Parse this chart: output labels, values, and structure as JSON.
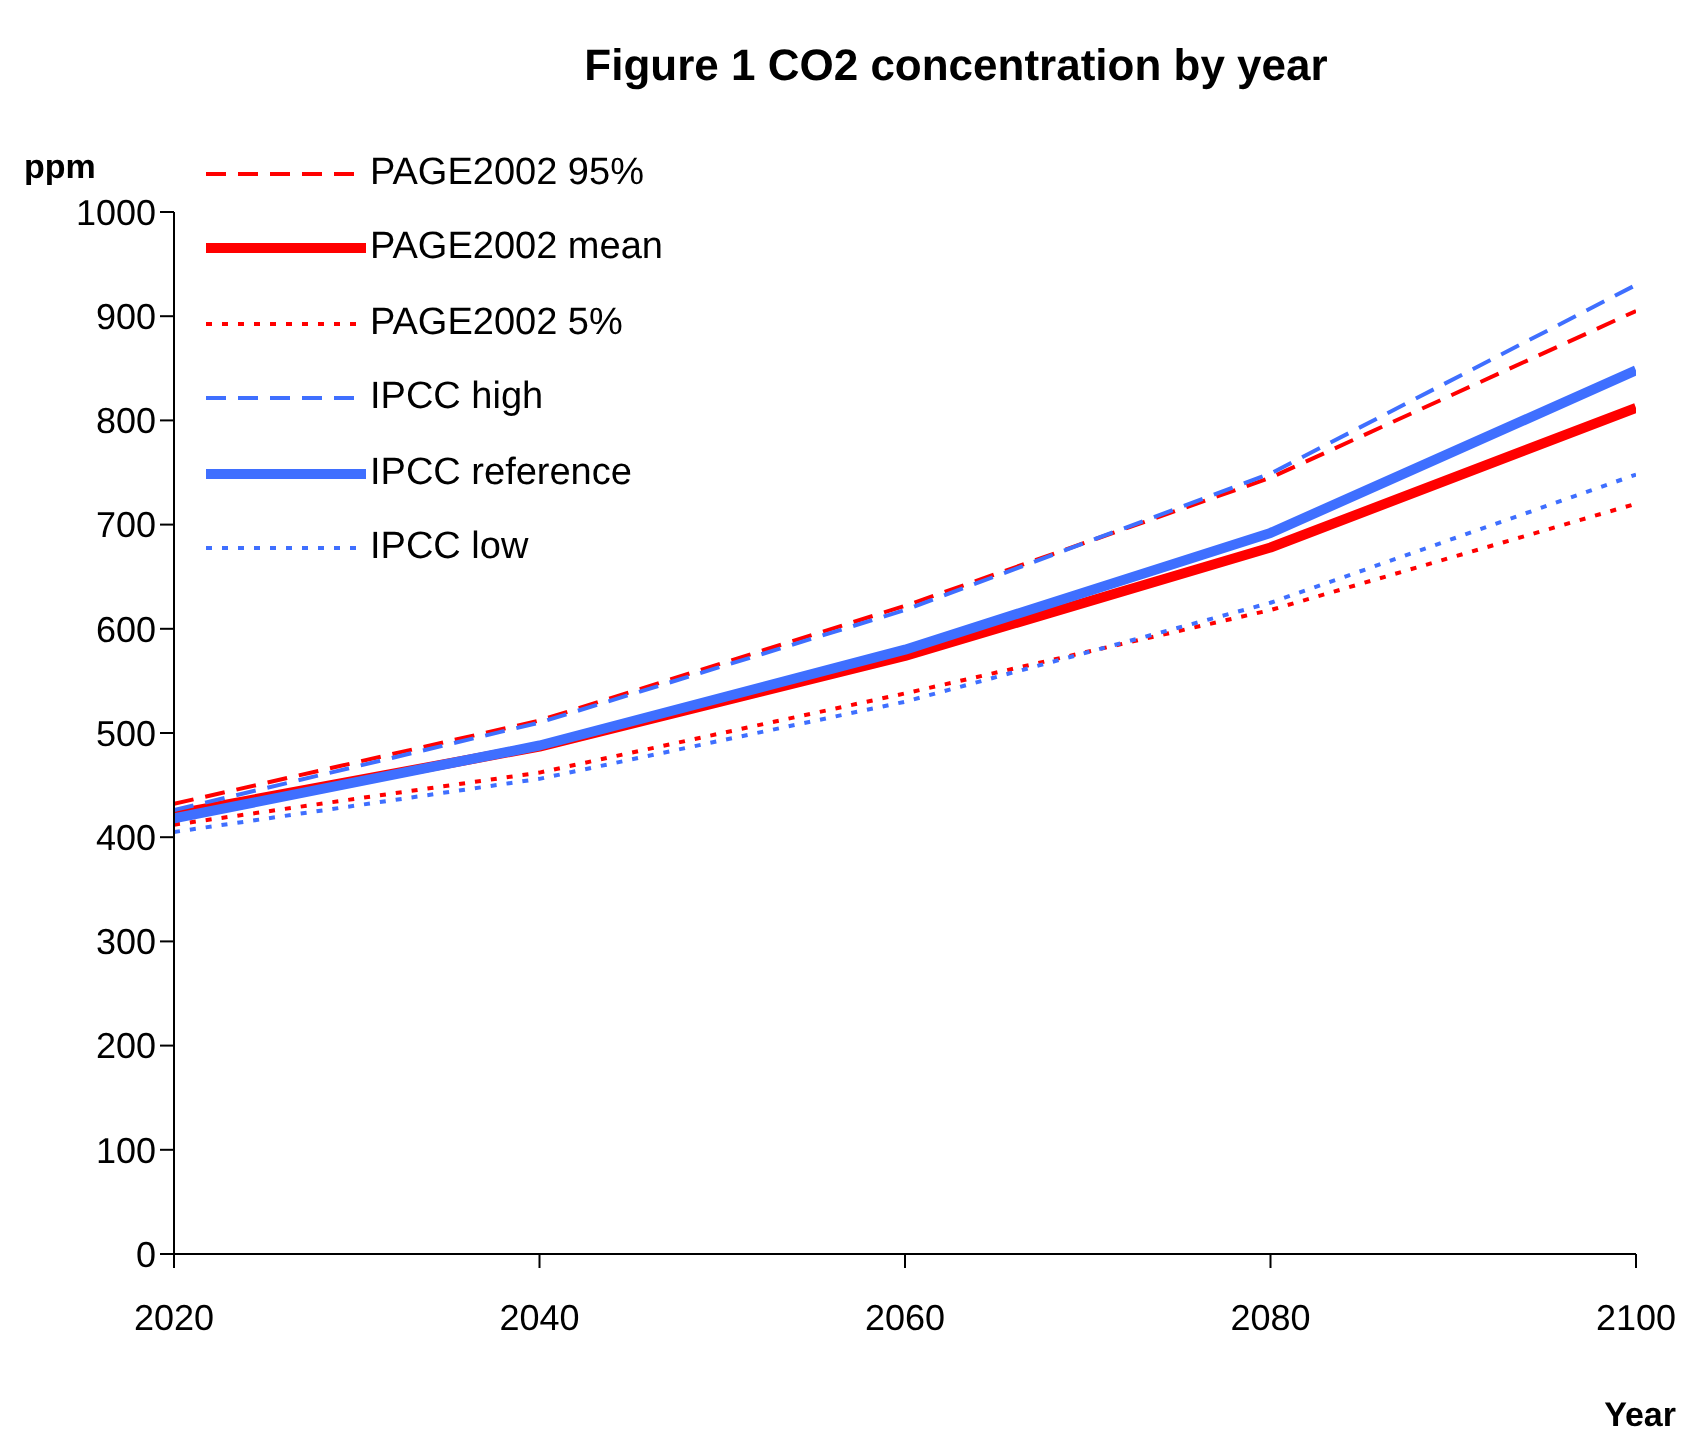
{
  "chart_data": {
    "type": "line",
    "title": "Figure 1 CO2 concentration by year",
    "xlabel": "Year",
    "ylabel": "ppm",
    "x": [
      2020,
      2040,
      2060,
      2080,
      2100
    ],
    "series": [
      {
        "name": "PAGE2002 95%",
        "color": "#ff0000",
        "line_style": "dashed",
        "values": [
          432,
          512,
          622,
          745,
          905
        ]
      },
      {
        "name": "PAGE2002 mean",
        "color": "#ff0000",
        "line_style": "solid",
        "values": [
          422,
          487,
          574,
          678,
          812
        ]
      },
      {
        "name": "PAGE2002 5%",
        "color": "#ff0000",
        "line_style": "dotted",
        "values": [
          412,
          462,
          538,
          618,
          720
        ]
      },
      {
        "name": "IPCC high",
        "color": "#3f6fff",
        "line_style": "dashed",
        "values": [
          426,
          510,
          618,
          749,
          930
        ]
      },
      {
        "name": "IPCC reference",
        "color": "#3f6fff",
        "line_style": "solid",
        "values": [
          418,
          488,
          580,
          692,
          848
        ]
      },
      {
        "name": "IPCC low",
        "color": "#3f6fff",
        "line_style": "dotted",
        "values": [
          405,
          456,
          530,
          625,
          748
        ]
      }
    ],
    "xlim": [
      2020,
      2100
    ],
    "xticks": [
      2020,
      2040,
      2060,
      2080,
      2100
    ],
    "ylim": [
      0,
      1000
    ],
    "yticks": [
      0,
      100,
      200,
      300,
      400,
      500,
      600,
      700,
      800,
      900,
      1000
    ],
    "grid": false,
    "legend": "top left",
    "marker": "none"
  }
}
